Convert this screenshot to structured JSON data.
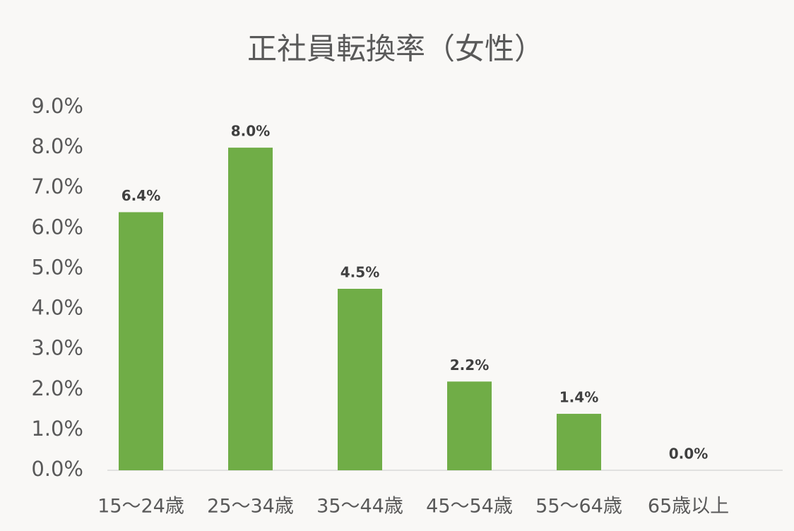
{
  "chart_data": {
    "type": "bar",
    "title": "正社員転換率（女性）",
    "categories": [
      "15〜24歳",
      "25〜34歳",
      "35〜44歳",
      "45〜54歳",
      "55〜64歳",
      "65歳以上"
    ],
    "values": [
      6.4,
      8.0,
      4.5,
      2.2,
      1.4,
      0.0
    ],
    "value_labels": [
      "6.4%",
      "8.0%",
      "4.5%",
      "2.2%",
      "1.4%",
      "0.0%"
    ],
    "color": "#70ad47",
    "ylim": [
      0,
      9
    ],
    "yticks": [
      {
        "value": 0,
        "label": "0.0%"
      },
      {
        "value": 1,
        "label": "1.0%"
      },
      {
        "value": 2,
        "label": "2.0%"
      },
      {
        "value": 3,
        "label": "3.0%"
      },
      {
        "value": 4,
        "label": "4.0%"
      },
      {
        "value": 5,
        "label": "5.0%"
      },
      {
        "value": 6,
        "label": "6.0%"
      },
      {
        "value": 7,
        "label": "7.0%"
      },
      {
        "value": 8,
        "label": "8.0%"
      },
      {
        "value": 9,
        "label": "9.0%"
      }
    ],
    "grid": false
  }
}
